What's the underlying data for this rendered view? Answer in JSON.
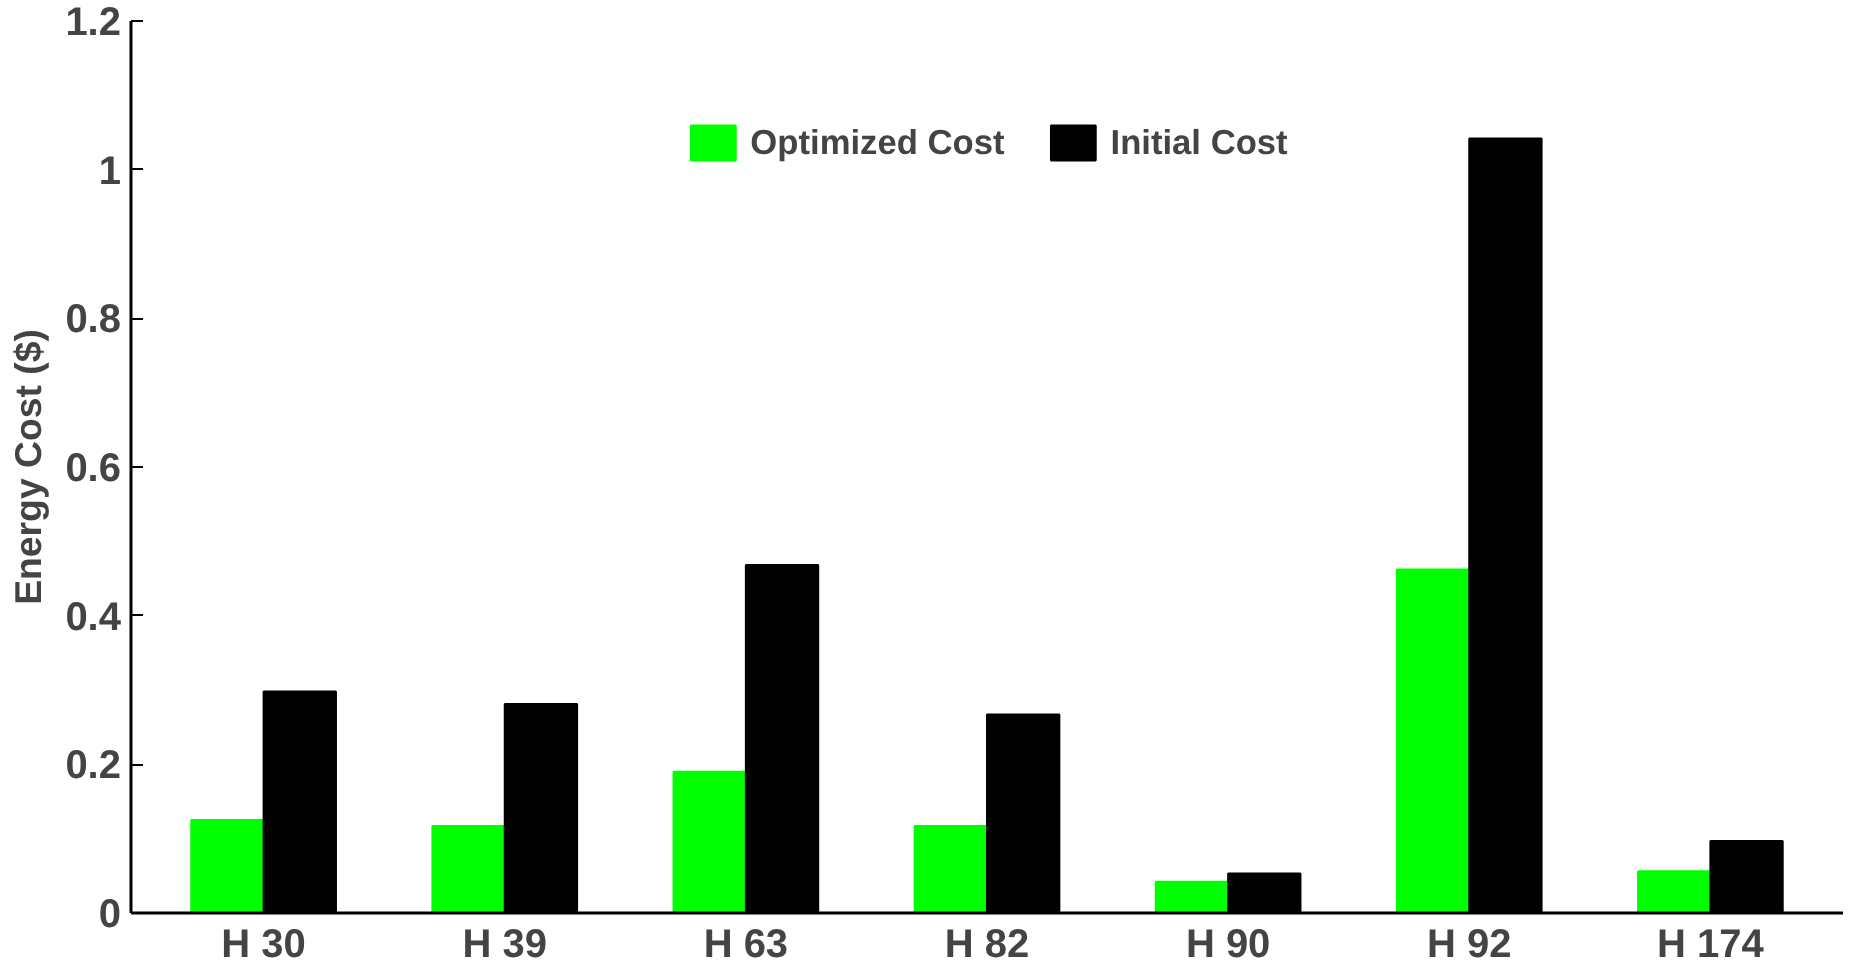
{
  "chart_data": {
    "type": "bar",
    "ylabel": "Energy Cost ($)",
    "categories": [
      "H 30",
      "H 39",
      "H 63",
      "H 82",
      "H 90",
      "H 92",
      "H 174"
    ],
    "series": [
      {
        "name": "Optimized Cost",
        "color": "#00ff00",
        "values": [
          0.125,
          0.117,
          0.19,
          0.117,
          0.042,
          0.462,
          0.056
        ]
      },
      {
        "name": "Initial Cost",
        "color": "#000000",
        "values": [
          0.298,
          0.281,
          0.468,
          0.267,
          0.053,
          1.042,
          0.097
        ]
      }
    ],
    "ylim": [
      0,
      1.2
    ],
    "yticks": [
      0,
      0.2,
      0.4,
      0.6,
      0.8,
      1,
      1.2
    ],
    "grid": false,
    "legend": "top"
  }
}
